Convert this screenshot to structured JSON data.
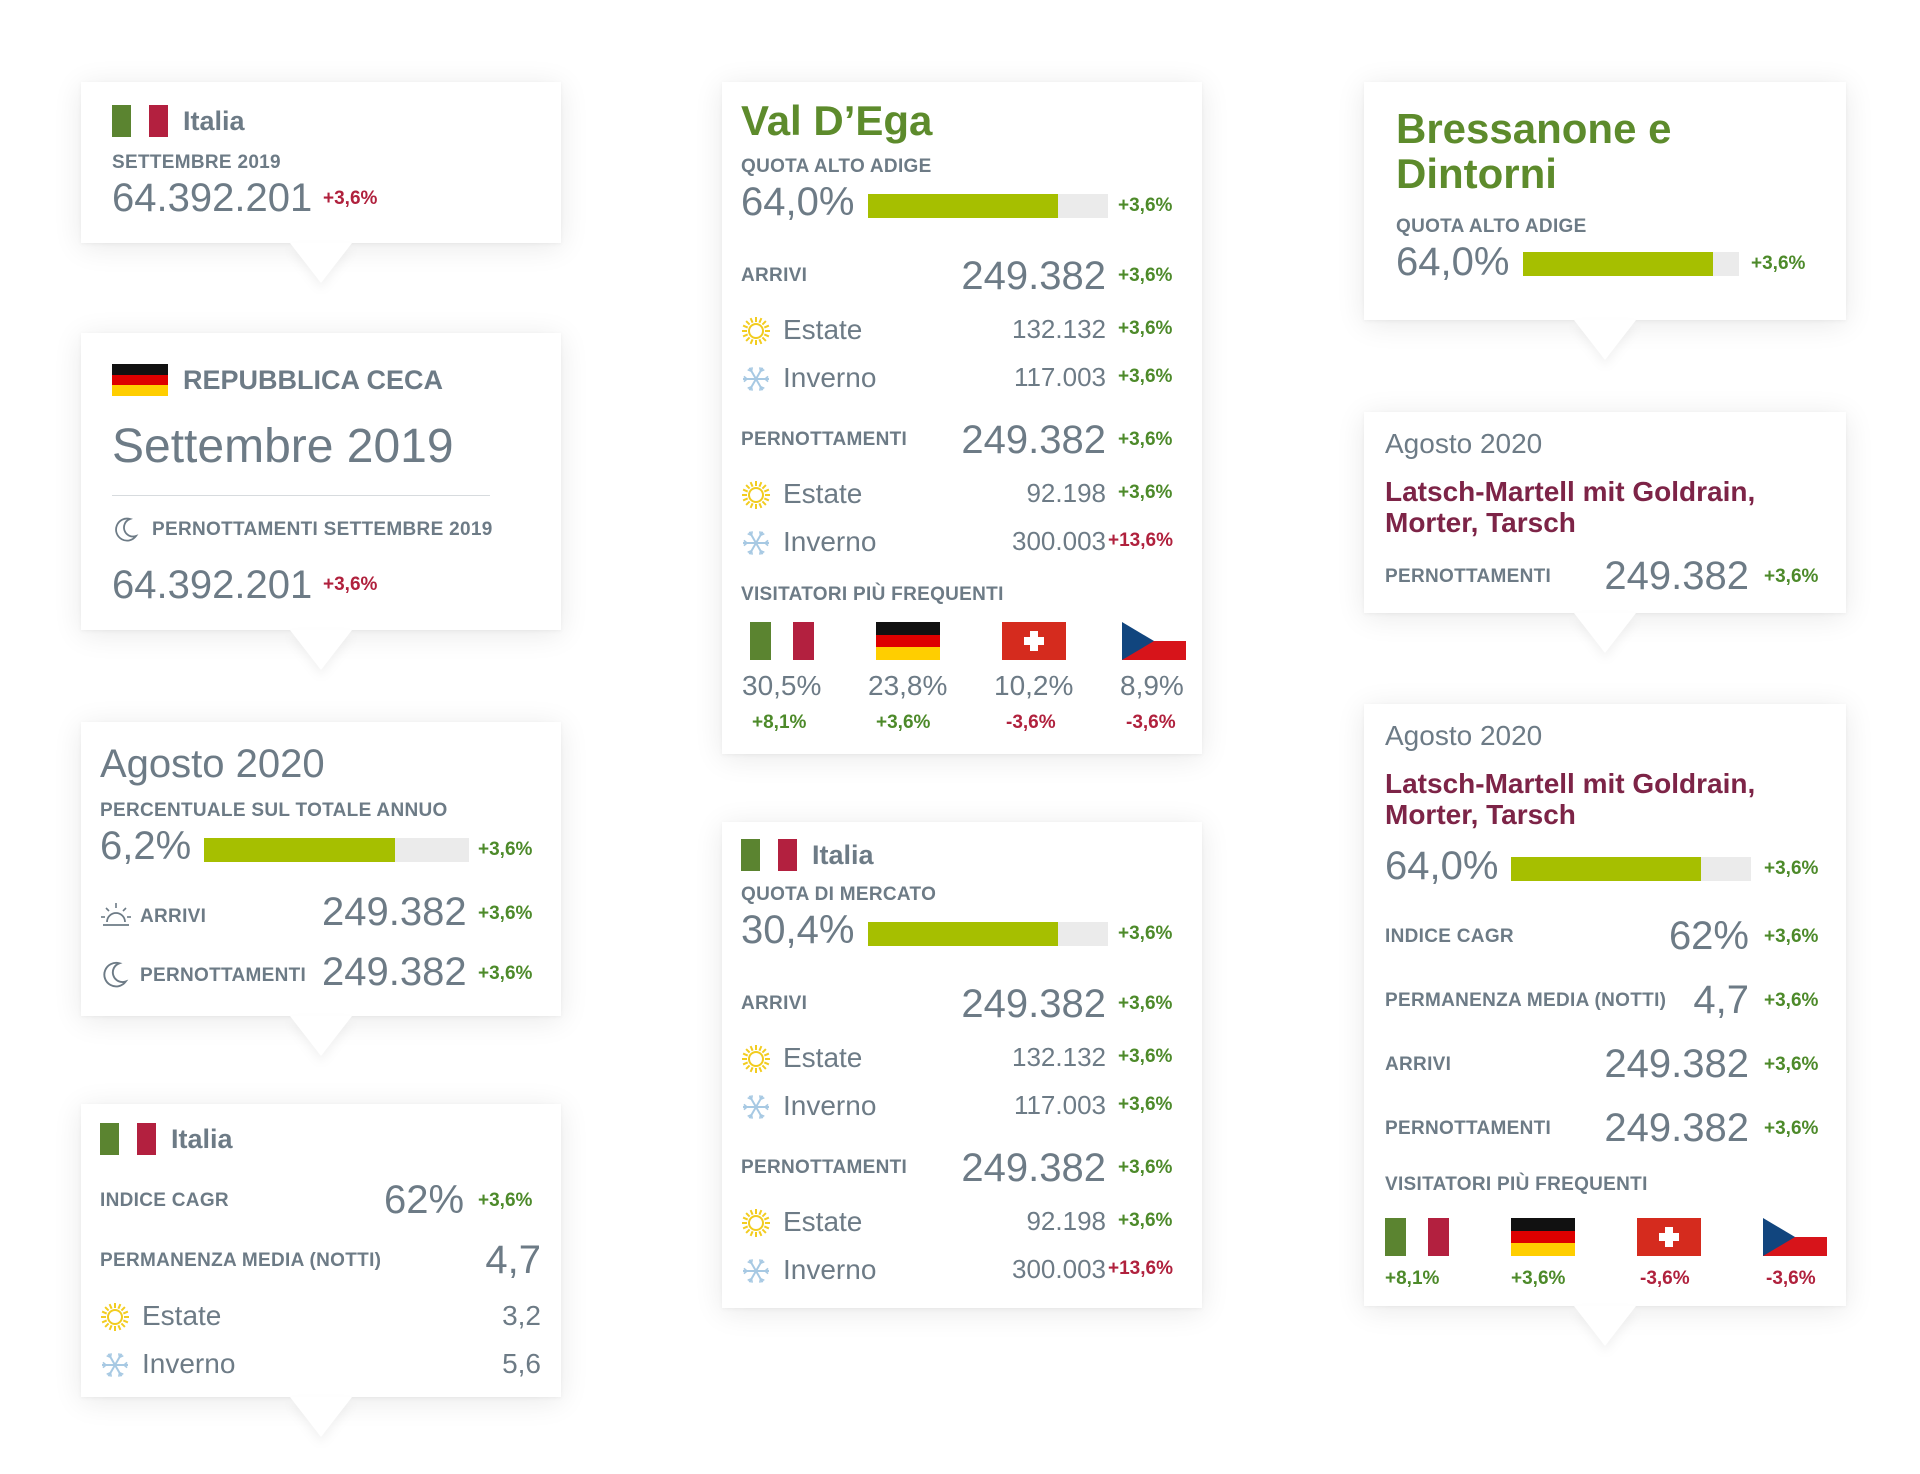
{
  "colors": {
    "accent_green": "#a6bf00",
    "positive": "#4d8a2a",
    "negative": "#b0213d",
    "title_green": "#5d8b2c",
    "title_red": "#7d2447",
    "text_gray": "#6d7b86",
    "bar_track": "#ebebeb"
  },
  "card1": {
    "country": "Italia",
    "period": "SETTEMBRE 2019",
    "value": "64.392.201",
    "change": "+3,6%",
    "flag": "italy-flag"
  },
  "card2": {
    "country": "REPUBBLICA CECA",
    "flag": "germany-flag",
    "title": "Settembre 2019",
    "metric_label": "PERNOTTAMENTI SETTEMBRE 2019",
    "metric_icon": "moon-icon",
    "value": "64.392.201",
    "change": "+3,6%"
  },
  "card3": {
    "title": "Agosto 2020",
    "percent_label": "PERCENTUALE SUL TOTALE ANNUO",
    "percent": "6,2%",
    "bar_fill": 0.72,
    "percent_change": "+3,6%",
    "rows": [
      {
        "icon": "sunrise-icon",
        "label": "ARRIVI",
        "value": "249.382",
        "change": "+3,6%"
      },
      {
        "icon": "moon-icon",
        "label": "PERNOTTAMENTI",
        "value": "249.382",
        "change": "+3,6%"
      }
    ]
  },
  "card4": {
    "country": "Italia",
    "flag": "italy-flag",
    "cagr_label": "INDICE CAGR",
    "cagr_value": "62%",
    "cagr_change": "+3,6%",
    "stay_label": "PERMANENZA MEDIA (NOTTI)",
    "stay_value": "4,7",
    "seasons": [
      {
        "icon": "sun-icon",
        "label": "Estate",
        "value": "3,2"
      },
      {
        "icon": "snowflake-icon",
        "label": "Inverno",
        "value": "5,6"
      }
    ]
  },
  "card5": {
    "title": "Val D’Ega",
    "quota_label": "QUOTA ALTO ADIGE",
    "quota": "64,0%",
    "bar_fill": 0.79,
    "quota_change": "+3,6%",
    "arrivi": {
      "label": "ARRIVI",
      "value": "249.382",
      "change": "+3,6%",
      "seasons": [
        {
          "icon": "sun-icon",
          "label": "Estate",
          "value": "132.132",
          "change": "+3,6%"
        },
        {
          "icon": "snowflake-icon",
          "label": "Inverno",
          "value": "117.003",
          "change": "+3,6%"
        }
      ]
    },
    "pernottamenti": {
      "label": "PERNOTTAMENTI",
      "value": "249.382",
      "change": "+3,6%",
      "seasons": [
        {
          "icon": "sun-icon",
          "label": "Estate",
          "value": "92.198",
          "change": "+3,6%"
        },
        {
          "icon": "snowflake-icon",
          "label": "Inverno",
          "value": "300.003",
          "change": "+13,6%"
        }
      ]
    },
    "visitors_label": "VISITATORI PIÙ FREQUENTI",
    "visitors": [
      {
        "flag": "italy-flag",
        "share": "30,5%",
        "change": "+8,1%"
      },
      {
        "flag": "germany-flag",
        "share": "23,8%",
        "change": "+3,6%"
      },
      {
        "flag": "switzerland-flag",
        "share": "10,2%",
        "change": "-3,6%"
      },
      {
        "flag": "czech-flag",
        "share": "8,9%",
        "change": "-3,6%"
      }
    ]
  },
  "card6": {
    "country": "Italia",
    "flag": "italy-flag",
    "quota_label": "QUOTA DI MERCATO",
    "quota": "30,4%",
    "bar_fill": 0.79,
    "quota_change": "+3,6%",
    "arrivi": {
      "label": "ARRIVI",
      "value": "249.382",
      "change": "+3,6%",
      "seasons": [
        {
          "icon": "sun-icon",
          "label": "Estate",
          "value": "132.132",
          "change": "+3,6%"
        },
        {
          "icon": "snowflake-icon",
          "label": "Inverno",
          "value": "117.003",
          "change": "+3,6%"
        }
      ]
    },
    "pernottamenti": {
      "label": "PERNOTTAMENTI",
      "value": "249.382",
      "change": "+3,6%",
      "seasons": [
        {
          "icon": "sun-icon",
          "label": "Estate",
          "value": "92.198",
          "change": "+3,6%"
        },
        {
          "icon": "snowflake-icon",
          "label": "Inverno",
          "value": "300.003",
          "change": "+13,6%"
        }
      ]
    }
  },
  "card7": {
    "title": "Bressanone e Dintorni",
    "quota_label": "QUOTA ALTO ADIGE",
    "quota": "64,0%",
    "bar_fill": 0.88,
    "quota_change": "+3,6%"
  },
  "card8": {
    "period": "Agosto 2020",
    "title": "Latsch-Martell mit Goldrain, Morter, Tarsch",
    "label": "PERNOTTAMENTI",
    "value": "249.382",
    "change": "+3,6%"
  },
  "card9": {
    "period": "Agosto 2020",
    "title": "Latsch-Martell mit Goldrain, Morter, Tarsch",
    "quota": "64,0%",
    "bar_fill": 0.79,
    "quota_change": "+3,6%",
    "rows": [
      {
        "label": "INDICE CAGR",
        "value": "62%",
        "change": "+3,6%"
      },
      {
        "label": "PERMANENZA MEDIA (NOTTI)",
        "value": "4,7",
        "change": "+3,6%"
      },
      {
        "label": "ARRIVI",
        "value": "249.382",
        "change": "+3,6%"
      },
      {
        "label": "PERNOTTAMENTI",
        "value": "249.382",
        "change": "+3,6%"
      }
    ],
    "visitors_label": "VISITATORI PIÙ FREQUENTI",
    "visitors": [
      {
        "flag": "italy-flag",
        "change": "+8,1%"
      },
      {
        "flag": "germany-flag",
        "change": "+3,6%"
      },
      {
        "flag": "switzerland-flag",
        "change": "-3,6%"
      },
      {
        "flag": "czech-flag",
        "change": "-3,6%"
      }
    ]
  }
}
